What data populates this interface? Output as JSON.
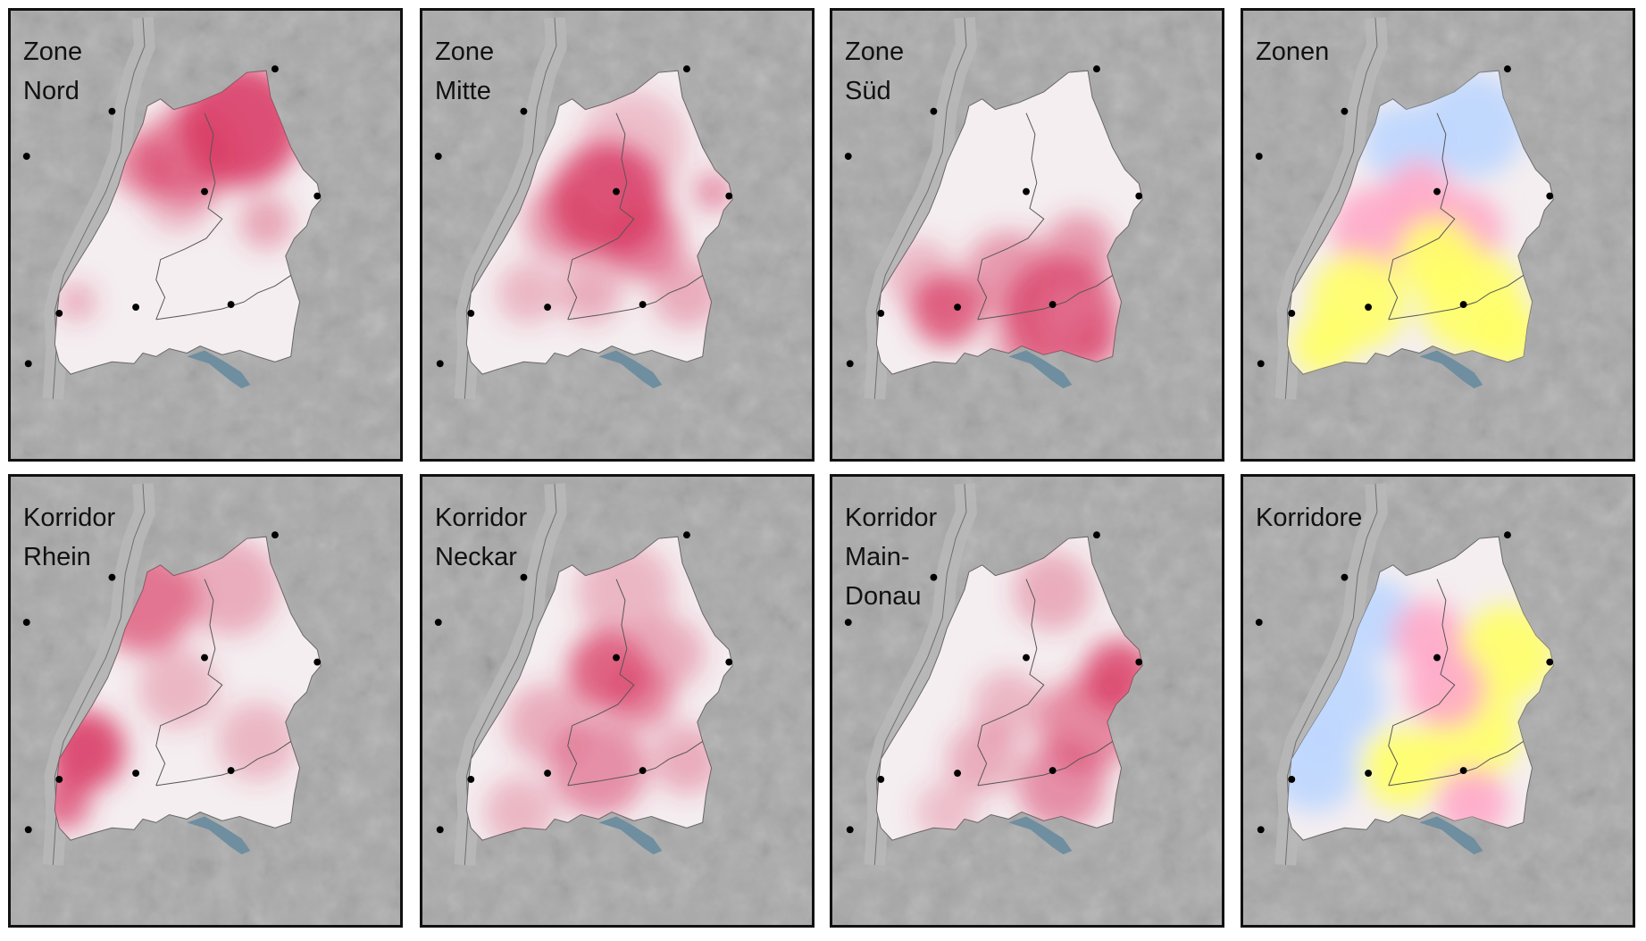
{
  "panels": [
    {
      "id": "zone-nord",
      "label_lines": [
        "Zone",
        "Nord"
      ],
      "colormap": "pink",
      "hotspots_desc": "north"
    },
    {
      "id": "zone-mitte",
      "label_lines": [
        "Zone",
        "Mitte"
      ],
      "colormap": "pink",
      "hotspots_desc": "center"
    },
    {
      "id": "zone-sued",
      "label_lines": [
        "Zone",
        "Süd"
      ],
      "colormap": "pink",
      "hotspots_desc": "south"
    },
    {
      "id": "zonen",
      "label_lines": [
        "Zonen"
      ],
      "colormap": "rgb-composite",
      "hotspots_desc": "composite"
    },
    {
      "id": "korridor-rhein",
      "label_lines": [
        "Korridor",
        "Rhein"
      ],
      "colormap": "pink",
      "hotspots_desc": "west"
    },
    {
      "id": "korridor-neckar",
      "label_lines": [
        "Korridor",
        "Neckar"
      ],
      "colormap": "pink",
      "hotspots_desc": "center-north"
    },
    {
      "id": "korridor-main-donau",
      "label_lines": [
        "Korridor",
        "Main-",
        "Donau"
      ],
      "colormap": "pink",
      "hotspots_desc": "east"
    },
    {
      "id": "korridore",
      "label_lines": [
        "Korridore"
      ],
      "colormap": "rgb-composite",
      "hotspots_desc": "composite"
    }
  ],
  "colors": {
    "terrain": "#a9a9a9",
    "terrain_light": "#c4c4c4",
    "state_base": "#f4eef0",
    "pink_strong": "#d8345f",
    "pink_mid": "#e88aa5",
    "lake": "#6f8ea0",
    "border": "#555555",
    "frame": "#111111",
    "composite_yellow": "#ffff66",
    "composite_blue": "#bcd6ff",
    "composite_pink": "#ffa8c8"
  }
}
